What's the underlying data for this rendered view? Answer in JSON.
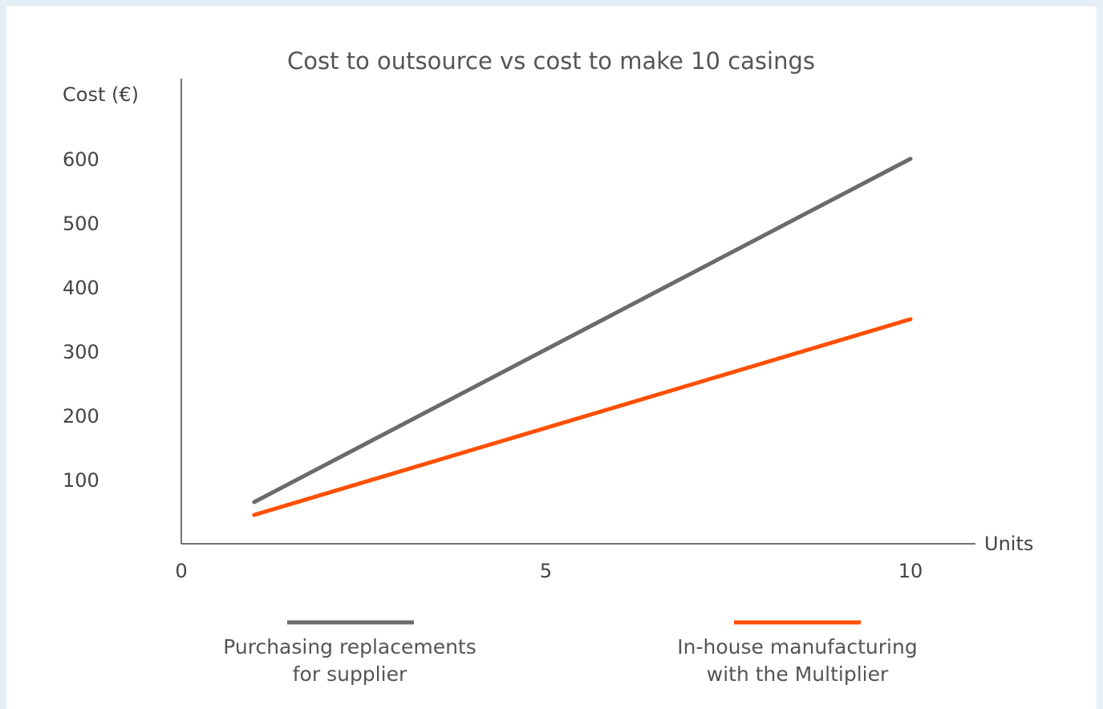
{
  "chart_data": {
    "type": "line",
    "title": "Cost to outsource vs cost to make 10 casings",
    "xlabel": "Units",
    "ylabel": "Cost (€)",
    "xlim": [
      0,
      10.8
    ],
    "ylim": [
      0,
      700
    ],
    "x_ticks": [
      0,
      5,
      10
    ],
    "y_ticks": [
      100,
      200,
      300,
      400,
      500,
      600
    ],
    "grid": false,
    "legend_position": "bottom",
    "series": [
      {
        "name": "Purchasing replacements\nfor supplier",
        "color": "#6b6b6b",
        "x": [
          1,
          10
        ],
        "y": [
          65,
          600
        ]
      },
      {
        "name": "In-house manufacturing\nwith the Multiplier",
        "color": "#ff4f00",
        "x": [
          1,
          10
        ],
        "y": [
          45,
          350
        ]
      }
    ]
  }
}
